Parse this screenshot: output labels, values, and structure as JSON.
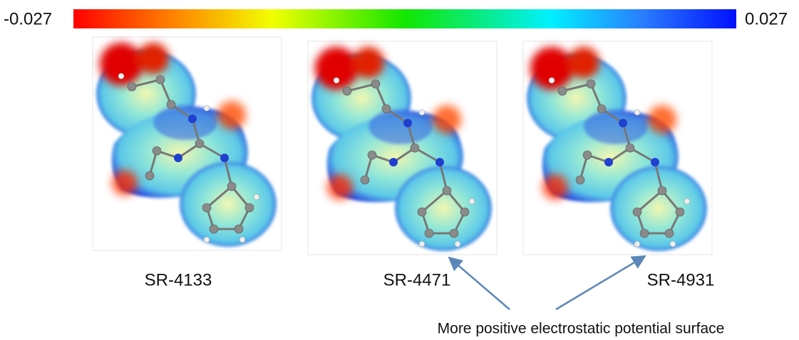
{
  "colorbar": {
    "min_label": "-0.027",
    "max_label": "0.027"
  },
  "molecules": [
    {
      "label": "SR-4133"
    },
    {
      "label": "SR-4471"
    },
    {
      "label": "SR-4931"
    }
  ],
  "annotation": "More positive electrostatic potential surface"
}
